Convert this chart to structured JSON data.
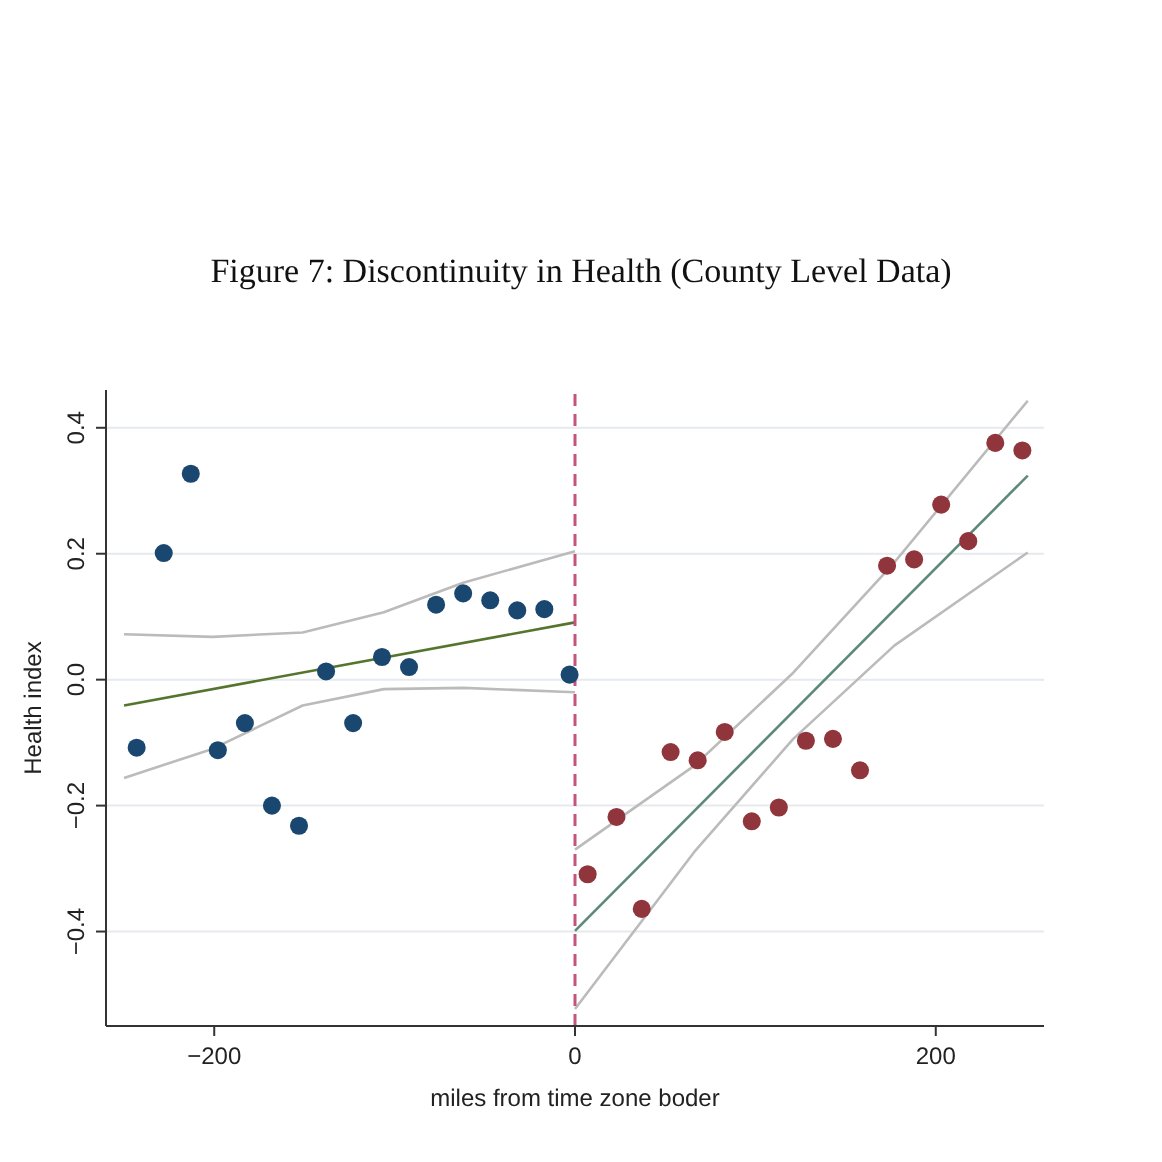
{
  "chart_data": {
    "type": "scatter",
    "title": "Figure 7: Discontinuity in Health (County Level Data)",
    "xlabel": "miles from time zone boder",
    "ylabel": "Health index",
    "xlim": [
      -260,
      260
    ],
    "xticks": [
      {
        "value": -200,
        "label": "−200"
      },
      0,
      200
    ],
    "ylim": [
      -0.55,
      0.46
    ],
    "yticks": [
      {
        "value": -0.4,
        "label": "−0.4"
      },
      {
        "value": -0.2,
        "label": "−0.2"
      },
      {
        "value": 0,
        "label": "0.0"
      },
      0.2,
      0.4
    ],
    "grid": "y",
    "legend": false,
    "ref_lines": [
      {
        "axis": "x",
        "value": 0,
        "color": "#c4547e",
        "line_style": "dashed"
      }
    ],
    "series": [
      {
        "type": "line",
        "color": "#bbbbbb",
        "marker": "none",
        "x": [
          -250,
          -201,
          -151,
          -106,
          -62,
          0
        ],
        "values": [
          0.072,
          0.068,
          0.075,
          0.107,
          0.154,
          0.204
        ]
      },
      {
        "type": "line",
        "color": "#bbbbbb",
        "marker": "none",
        "x": [
          -250,
          -201,
          -151,
          -106,
          -62,
          0
        ],
        "values": [
          -0.156,
          -0.11,
          -0.041,
          -0.015,
          -0.013,
          -0.02
        ]
      },
      {
        "type": "line",
        "color": "#55752f",
        "marker": "none",
        "x": [
          -250,
          0
        ],
        "values": [
          -0.041,
          0.091
        ]
      },
      {
        "type": "line",
        "color": "#bbbbbb",
        "marker": "none",
        "x": [
          0,
          66,
          121,
          177,
          251
        ],
        "values": [
          -0.27,
          -0.137,
          0.011,
          0.186,
          0.443
        ]
      },
      {
        "type": "line",
        "color": "#bbbbbb",
        "marker": "none",
        "x": [
          0,
          66,
          121,
          177,
          251
        ],
        "values": [
          -0.523,
          -0.274,
          -0.094,
          0.054,
          0.202
        ]
      },
      {
        "type": "line",
        "color": "#5d8a78",
        "marker": "none",
        "x": [
          0,
          251
        ],
        "values": [
          -0.399,
          0.324
        ]
      },
      {
        "type": "scatter",
        "color": "#1a476f",
        "marker": "circle",
        "x": [
          -243,
          -228,
          -213,
          -198,
          -183,
          -168,
          -153,
          -138,
          -123,
          -107,
          -92,
          -77,
          -62,
          -47,
          -32,
          -17,
          -3
        ],
        "values": [
          -0.108,
          0.201,
          0.327,
          -0.112,
          -0.069,
          -0.2,
          -0.232,
          0.013,
          -0.069,
          0.036,
          0.02,
          0.119,
          0.137,
          0.126,
          0.11,
          0.112,
          0.008
        ]
      },
      {
        "type": "scatter",
        "color": "#90353b",
        "marker": "circle",
        "x": [
          7,
          23,
          37,
          53,
          68,
          83,
          98,
          113,
          128,
          143,
          158,
          173,
          188,
          203,
          218,
          233,
          248
        ],
        "values": [
          -0.309,
          -0.218,
          -0.364,
          -0.115,
          -0.128,
          -0.083,
          -0.225,
          -0.203,
          -0.097,
          -0.094,
          -0.144,
          0.181,
          0.191,
          0.278,
          0.22,
          0.376,
          0.364
        ]
      }
    ]
  }
}
